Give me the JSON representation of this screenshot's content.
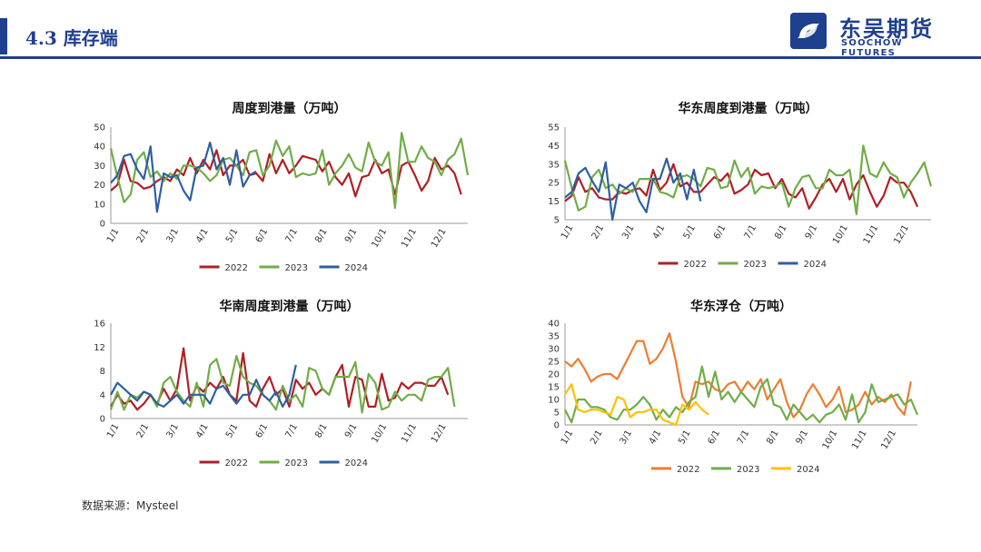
{
  "header": {
    "section_title": "4.3 库存端",
    "logo_cn": "东吴期货",
    "logo_en": "SOOCHOW FUTURES"
  },
  "footer": {
    "source": "数据来源：Mysteel"
  },
  "colors": {
    "y2022": "#b01f24",
    "y2023": "#70ad47",
    "y2024": "#2e5fa1",
    "y2022_alt": "#ed7d31",
    "y2024_alt": "#ffc000",
    "brand": "#1f3f8f"
  },
  "chart_data": [
    {
      "type": "line",
      "title": "周度到港量（万吨）",
      "x_ticks": [
        "1/1",
        "2/1",
        "3/1",
        "4/1",
        "5/1",
        "6/1",
        "7/1",
        "8/1",
        "9/1",
        "10/1",
        "11/1",
        "12/1"
      ],
      "ylim": [
        0,
        50
      ],
      "y_ticks": [
        0,
        10,
        20,
        30,
        40,
        50
      ],
      "legend": "bottom",
      "series": [
        {
          "name": "2022",
          "color": "#b01f24",
          "values": [
            17,
            20,
            33,
            22,
            21,
            18,
            19,
            22,
            24,
            22,
            28,
            25,
            34,
            26,
            33,
            28,
            38,
            25,
            30,
            30,
            33,
            25,
            26,
            22,
            36,
            26,
            33,
            26,
            30,
            35,
            34,
            33,
            27,
            32,
            24,
            20,
            26,
            14,
            24,
            25,
            33,
            26,
            28,
            15,
            30,
            32,
            25,
            17,
            22,
            34,
            28,
            30,
            26,
            15
          ]
        },
        {
          "name": "2023",
          "color": "#70ad47",
          "values": [
            39,
            24,
            11,
            15,
            33,
            37,
            24,
            27,
            22,
            26,
            23,
            30,
            30,
            29,
            26,
            22,
            25,
            33,
            34,
            30,
            25,
            37,
            38,
            25,
            30,
            43,
            35,
            40,
            24,
            26,
            25,
            26,
            38,
            20,
            26,
            30,
            36,
            29,
            27,
            42,
            32,
            30,
            37,
            8,
            47,
            32,
            32,
            40,
            34,
            32,
            25,
            33,
            36,
            44,
            25
          ]
        },
        {
          "name": "2024",
          "color": "#2e5fa1",
          "values": [
            21,
            25,
            35,
            36,
            28,
            23,
            40,
            6,
            26,
            24,
            25,
            17,
            12,
            29,
            30,
            42,
            28,
            34,
            20,
            38,
            19,
            25,
            27
          ]
        }
      ]
    },
    {
      "type": "line",
      "title": "华东周度到港量（万吨）",
      "x_ticks": [
        "1/1",
        "2/1",
        "3/1",
        "4/1",
        "5/1",
        "6/1",
        "7/1",
        "8/1",
        "9/1",
        "10/1",
        "11/1",
        "12/1"
      ],
      "ylim": [
        5,
        55
      ],
      "y_ticks": [
        5,
        15,
        25,
        35,
        45,
        55
      ],
      "legend": "bottom",
      "series": [
        {
          "name": "2022",
          "color": "#b01f24",
          "values": [
            15,
            18,
            28,
            20,
            22,
            17,
            16,
            16,
            20,
            19,
            21,
            22,
            18,
            32,
            21,
            25,
            35,
            23,
            25,
            20,
            20,
            24,
            28,
            26,
            30,
            19,
            21,
            24,
            32,
            29,
            30,
            22,
            27,
            19,
            17,
            22,
            11,
            17,
            24,
            27,
            20,
            27,
            16,
            24,
            29,
            20,
            12,
            18,
            28,
            25,
            25,
            20,
            12
          ]
        },
        {
          "name": "2023",
          "color": "#70ad47",
          "values": [
            37,
            22,
            10,
            12,
            28,
            32,
            22,
            24,
            19,
            22,
            20,
            27,
            27,
            27,
            20,
            19,
            17,
            28,
            29,
            27,
            23,
            33,
            32,
            22,
            23,
            37,
            28,
            33,
            19,
            23,
            22,
            23,
            25,
            12,
            22,
            28,
            29,
            22,
            22,
            32,
            29,
            29,
            32,
            8,
            45,
            30,
            28,
            36,
            30,
            28,
            17,
            25,
            30,
            36,
            23
          ]
        },
        {
          "name": "2024",
          "color": "#2e5fa1",
          "values": [
            17,
            20,
            30,
            33,
            26,
            20,
            36,
            5,
            24,
            22,
            25,
            15,
            9,
            27,
            27,
            38,
            25,
            30,
            16,
            32,
            15
          ]
        }
      ]
    },
    {
      "type": "line",
      "title": "华南周度到港量（万吨）",
      "x_ticks": [
        "1/1",
        "2/1",
        "3/1",
        "4/1",
        "5/1",
        "6/1",
        "7/1",
        "8/1",
        "9/1",
        "10/1",
        "11/1",
        "12/1"
      ],
      "ylim": [
        0,
        16
      ],
      "y_ticks": [
        0,
        4,
        8,
        12,
        16
      ],
      "legend": "bottom",
      "series": [
        {
          "name": "2022",
          "color": "#b01f24",
          "values": [
            2,
            4,
            2.5,
            3,
            1.5,
            2.5,
            4,
            2.5,
            5,
            3,
            5,
            11.8,
            3,
            5.5,
            4.5,
            6,
            5,
            7,
            4,
            3,
            11,
            3,
            2,
            5,
            7,
            4,
            5,
            2,
            6.5,
            5,
            6,
            4,
            5,
            4,
            7,
            9,
            2,
            7,
            6.5,
            2,
            2,
            7.5,
            3,
            3.5,
            6,
            5,
            6,
            6,
            5.5,
            5.5,
            7,
            4
          ]
        },
        {
          "name": "2023",
          "color": "#70ad47",
          "values": [
            1.5,
            4.5,
            1.5,
            4,
            3.5,
            4.5,
            4,
            2,
            6,
            7,
            4.5,
            3,
            2,
            6,
            2,
            9,
            10,
            6,
            5.5,
            10.5,
            7,
            6,
            5.5,
            4,
            3,
            1.5,
            5.5,
            3,
            4,
            2,
            8.5,
            8,
            5,
            4,
            7,
            7,
            7,
            9.5,
            1,
            7.5,
            6,
            1.5,
            2,
            4.5,
            3,
            4,
            4,
            3,
            6.5,
            7,
            7,
            8.5,
            2
          ]
        },
        {
          "name": "2024",
          "color": "#2e5fa1",
          "values": [
            4,
            6,
            5,
            4,
            3,
            4.5,
            4,
            2.5,
            2,
            3,
            4,
            2.5,
            4,
            4,
            4,
            2.5,
            5,
            5.5,
            4,
            2.5,
            4,
            4,
            6.5,
            4,
            3,
            4.5,
            2,
            4,
            9
          ]
        }
      ]
    },
    {
      "type": "line",
      "title": "华东浮仓（万吨）",
      "x_ticks": [
        "1/1",
        "2/1",
        "3/1",
        "4/1",
        "5/1",
        "6/1",
        "7/1",
        "8/1",
        "9/1",
        "10/1",
        "11/1",
        "12/1"
      ],
      "ylim": [
        0,
        40
      ],
      "y_ticks": [
        0,
        5,
        10,
        15,
        20,
        25,
        30,
        35,
        40
      ],
      "legend": "bottom",
      "series": [
        {
          "name": "2022",
          "color": "#ed7d31",
          "values": [
            25,
            23,
            26,
            22,
            17,
            19,
            20,
            20,
            18,
            23,
            28,
            33,
            33,
            24,
            26,
            30,
            36,
            25,
            11,
            7,
            17,
            16,
            17,
            14,
            13,
            16,
            17,
            13,
            17,
            14,
            18,
            10,
            14,
            18,
            9,
            3,
            6,
            12,
            16,
            12,
            7,
            10,
            15,
            5,
            6,
            8,
            13,
            8,
            11,
            9,
            12,
            7,
            4,
            17
          ]
        },
        {
          "name": "2023",
          "color": "#70ad47",
          "values": [
            6,
            1,
            10,
            10,
            7,
            7,
            6,
            3,
            2,
            6,
            6,
            8,
            11,
            8,
            2,
            6,
            3,
            7,
            5,
            9,
            11,
            23,
            11,
            21,
            10,
            13,
            9,
            13,
            10,
            7,
            15,
            18,
            8,
            7,
            2,
            8,
            5,
            2,
            4,
            1,
            4,
            5,
            8,
            2,
            12,
            1,
            5,
            16,
            9,
            10,
            11,
            12,
            8,
            10,
            4
          ]
        },
        {
          "name": "2024",
          "color": "#ffc000",
          "values": [
            12,
            16,
            6,
            5,
            6,
            6,
            5,
            4,
            11,
            10,
            3,
            5,
            5,
            6,
            6,
            2,
            1,
            0,
            8,
            6,
            9,
            6,
            4
          ]
        }
      ]
    }
  ]
}
